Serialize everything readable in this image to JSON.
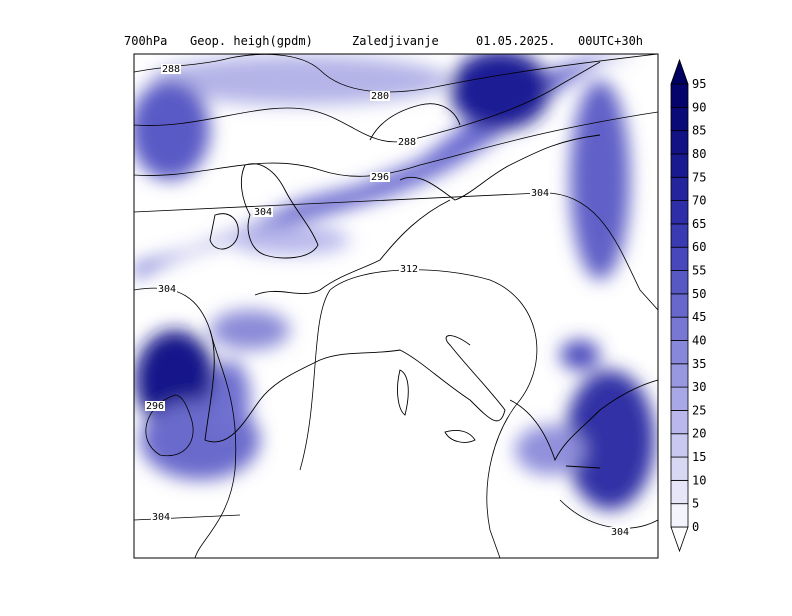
{
  "header": {
    "level": "700hPa",
    "field": "Geop. heigh(gpdm)",
    "product": "Zaledjivanje",
    "date": "01.05.2025.",
    "run": "00UTC+30h"
  },
  "contours": [
    {
      "label": "288"
    },
    {
      "label": "280"
    },
    {
      "label": "288"
    },
    {
      "label": "296"
    },
    {
      "label": "304"
    },
    {
      "label": "304"
    },
    {
      "label": "312"
    },
    {
      "label": "304"
    },
    {
      "label": "296"
    },
    {
      "label": "304"
    },
    {
      "label": "304"
    }
  ],
  "colorbar": {
    "labels": [
      "0",
      "5",
      "10",
      "15",
      "20",
      "25",
      "30",
      "35",
      "40",
      "45",
      "50",
      "55",
      "60",
      "65",
      "70",
      "75",
      "80",
      "85",
      "90",
      "95"
    ],
    "colors": [
      "#ffffff",
      "#f4f4fc",
      "#e6e6f8",
      "#d8d8f4",
      "#c8c8f0",
      "#b8b8ec",
      "#a8a8e6",
      "#9898e0",
      "#8888da",
      "#7878d4",
      "#6868cc",
      "#5858c4",
      "#4848bc",
      "#3a3ab2",
      "#2e2ea8",
      "#24249c",
      "#1a1a90",
      "#121284",
      "#0a0a78",
      "#04046c",
      "#000060"
    ]
  }
}
